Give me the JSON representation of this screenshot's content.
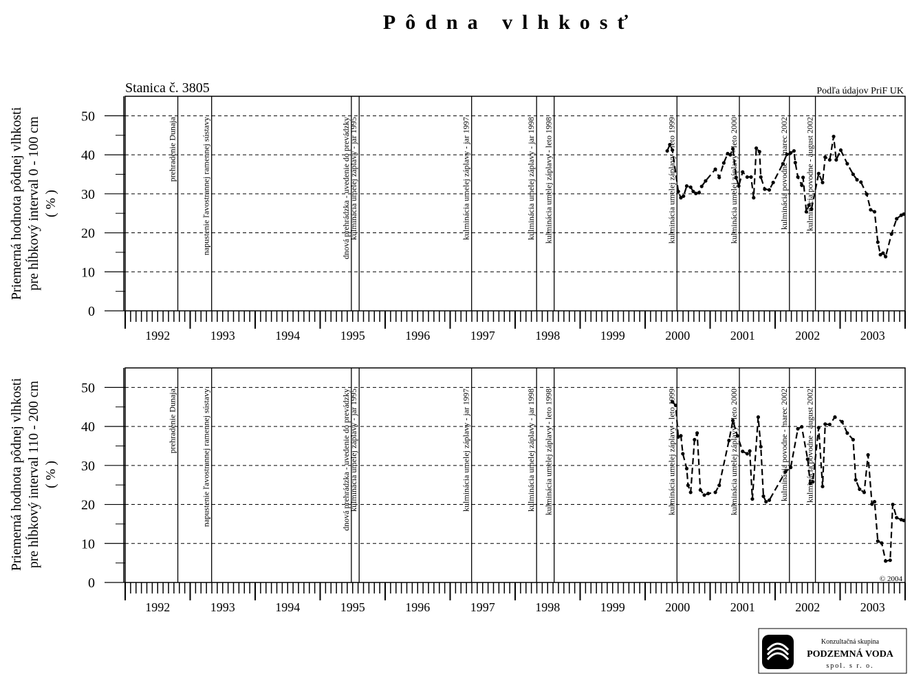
{
  "title": "Pôdna vlhkosť",
  "subtitle": "Stanica č. 3805",
  "source": "Podľa údajov PriF UK",
  "copyright": "© 2004",
  "logo": {
    "line1": "Konzultačná skupina",
    "line2": "PODZEMNÁ VODA",
    "line3": "spol. s r. o."
  },
  "chart_data": [
    {
      "type": "line",
      "ylabel": [
        "Priemerná hodnota pôdnej vlhkosti",
        "pre hĺbkový interval 0 - 100 cm",
        "( % )"
      ],
      "xlim": [
        1992,
        2004
      ],
      "xticks": [
        {
          "value": 1992.5,
          "label": "1992"
        },
        {
          "value": 1993.5,
          "label": "1993"
        },
        {
          "value": 1994.5,
          "label": "1994"
        },
        {
          "value": 1995.5,
          "label": "1995"
        },
        {
          "value": 1996.5,
          "label": "1996"
        },
        {
          "value": 1997.5,
          "label": "1997"
        },
        {
          "value": 1998.5,
          "label": "1998"
        },
        {
          "value": 1999.5,
          "label": "1999"
        },
        {
          "value": 2000.5,
          "label": "2000"
        },
        {
          "value": 2001.5,
          "label": "2001"
        },
        {
          "value": 2002.5,
          "label": "2002"
        },
        {
          "value": 2003.5,
          "label": "2003"
        }
      ],
      "ylim": [
        0,
        55
      ],
      "yticks": [
        0,
        10,
        20,
        30,
        40,
        50
      ],
      "grid": true,
      "events": [
        {
          "x": 1992.81,
          "label": "prehradenie Dunaja"
        },
        {
          "x": 1993.33,
          "label": "napustenie ľavostrannej ramennej sústavy"
        },
        {
          "x": 1995.48,
          "label": "dnová prehrádzka - uvedenie do prevádzky"
        },
        {
          "x": 1995.6,
          "label": "kulminácia umelej záplavy - jar 1995"
        },
        {
          "x": 1997.33,
          "label": "kulminácia umelej záplavy - jar 1997"
        },
        {
          "x": 1998.33,
          "label": "kulminácia umelej záplavy - jar 1998"
        },
        {
          "x": 1998.6,
          "label": "kulminácia umelej záplavy - leto 1998"
        },
        {
          "x": 2000.49,
          "label": "kulminácia umelej záplavy - leto 1999"
        },
        {
          "x": 2001.45,
          "label": "kulminácia umelej záplavy - leto 2000"
        },
        {
          "x": 2002.22,
          "label": "kulminácia povodne - marec 2002"
        },
        {
          "x": 2002.62,
          "label": "kulminácia povodne - august 2002"
        }
      ],
      "color": "#000000",
      "x": [
        2000.34,
        2000.38,
        2000.42,
        2000.51,
        2000.55,
        2000.59,
        2000.64,
        2000.7,
        2000.74,
        2000.78,
        2000.83,
        2000.87,
        2000.93,
        2001.08,
        2001.14,
        2001.21,
        2001.27,
        2001.31,
        2001.35,
        2001.4,
        2001.44,
        2001.5,
        2001.57,
        2001.63,
        2001.67,
        2001.71,
        2001.76,
        2001.78,
        2001.84,
        2001.91,
        2001.97,
        2002.12,
        2002.18,
        2002.24,
        2002.29,
        2002.31,
        2002.35,
        2002.41,
        2002.43,
        2002.48,
        2002.52,
        2002.56,
        2002.67,
        2002.73,
        2002.77,
        2002.84,
        2002.9,
        2002.94,
        2003.01,
        2003.11,
        2003.2,
        2003.26,
        2003.32,
        2003.41,
        2003.47,
        2003.53,
        2003.58,
        2003.62,
        2003.66,
        2003.7,
        2003.79,
        2003.87,
        2003.94,
        2003.98
      ],
      "values": [
        41,
        42.6,
        41.2,
        30.6,
        29,
        29.4,
        32,
        31.7,
        30.6,
        30.1,
        30.3,
        31.9,
        33.3,
        36.3,
        34.2,
        37.9,
        40.3,
        40,
        41.5,
        34.2,
        32,
        35.6,
        34.3,
        34.3,
        29,
        41.7,
        40.8,
        34.3,
        31.2,
        31,
        32.9,
        37.7,
        40.1,
        40.5,
        41,
        38,
        34.3,
        32.2,
        34.2,
        25.4,
        27.1,
        26.1,
        35.2,
        32.9,
        39.4,
        38.7,
        44.7,
        38.7,
        41.2,
        37.7,
        35,
        33.6,
        33,
        29.9,
        25.9,
        25.4,
        17.6,
        14.4,
        14.8,
        13.9,
        19.7,
        23.6,
        24.5,
        24.8
      ]
    },
    {
      "type": "line",
      "ylabel": [
        "Priemerná hodnota pôdnej vlhkosti",
        "pre hĺbkový interval 110 - 200 cm",
        "( % )"
      ],
      "xlim": [
        1992,
        2004
      ],
      "xticks": [
        {
          "value": 1992.5,
          "label": "1992"
        },
        {
          "value": 1993.5,
          "label": "1993"
        },
        {
          "value": 1994.5,
          "label": "1994"
        },
        {
          "value": 1995.5,
          "label": "1995"
        },
        {
          "value": 1996.5,
          "label": "1996"
        },
        {
          "value": 1997.5,
          "label": "1997"
        },
        {
          "value": 1998.5,
          "label": "1998"
        },
        {
          "value": 1999.5,
          "label": "1999"
        },
        {
          "value": 2000.5,
          "label": "2000"
        },
        {
          "value": 2001.5,
          "label": "2001"
        },
        {
          "value": 2002.5,
          "label": "2002"
        },
        {
          "value": 2003.5,
          "label": "2003"
        }
      ],
      "ylim": [
        0,
        55
      ],
      "yticks": [
        0,
        10,
        20,
        30,
        40,
        50
      ],
      "grid": true,
      "events": [
        {
          "x": 1992.81,
          "label": "prehradenie Dunaja"
        },
        {
          "x": 1993.33,
          "label": "napustenie ľavostrannej ramennej sústavy"
        },
        {
          "x": 1995.48,
          "label": "dnová prehrádzka - uvedenie do prevádzky"
        },
        {
          "x": 1995.6,
          "label": "kulminácia umelej záplavy - jar 1995"
        },
        {
          "x": 1997.33,
          "label": "kulminácia umelej záplavy - jar 1997"
        },
        {
          "x": 1998.33,
          "label": "kulminácia umelej záplavy - jar 1998"
        },
        {
          "x": 1998.6,
          "label": "kulminácia umelej záplavy - leto 1998"
        },
        {
          "x": 2000.49,
          "label": "kulminácia umelej záplavy - leto 1999"
        },
        {
          "x": 2001.45,
          "label": "kulminácia umelej záplavy - leto 2000"
        },
        {
          "x": 2002.22,
          "label": "kulminácia povodne - marec 2002"
        },
        {
          "x": 2002.62,
          "label": "kulminácia povodne - august 2002"
        }
      ],
      "color": "#000000",
      "x": [
        2000.42,
        2000.47,
        2000.51,
        2000.55,
        2000.58,
        2000.64,
        2000.66,
        2000.7,
        2000.76,
        2000.8,
        2000.85,
        2000.91,
        2000.97,
        2001.08,
        2001.14,
        2001.29,
        2001.35,
        2001.42,
        2001.5,
        2001.57,
        2001.61,
        2001.65,
        2001.74,
        2001.78,
        2001.82,
        2001.86,
        2001.91,
        2002.16,
        2002.24,
        2002.35,
        2002.41,
        2002.5,
        2002.54,
        2002.58,
        2002.67,
        2002.73,
        2002.77,
        2002.84,
        2002.92,
        2003.03,
        2003.11,
        2003.2,
        2003.24,
        2003.3,
        2003.37,
        2003.43,
        2003.49,
        2003.53,
        2003.58,
        2003.64,
        2003.7,
        2003.77,
        2003.81,
        2003.87,
        2003.94,
        2003.98
      ],
      "values": [
        46.3,
        45.4,
        37.3,
        37.6,
        33,
        29.2,
        24.9,
        23.1,
        36.6,
        38.3,
        23.7,
        22.4,
        22.8,
        23.1,
        24.9,
        36.4,
        41.5,
        37.6,
        33.6,
        33,
        33.7,
        21.4,
        42.4,
        34.8,
        22.1,
        20.7,
        21.1,
        28.4,
        29.5,
        39.4,
        39.9,
        31.6,
        25.4,
        25.8,
        39.7,
        24.6,
        40.6,
        40.5,
        42.4,
        41.2,
        38.3,
        36.6,
        26.3,
        23.9,
        23.1,
        32.7,
        20.1,
        20.7,
        10.6,
        10.1,
        5.5,
        5.7,
        20,
        16.6,
        16.1,
        15.9
      ]
    }
  ]
}
